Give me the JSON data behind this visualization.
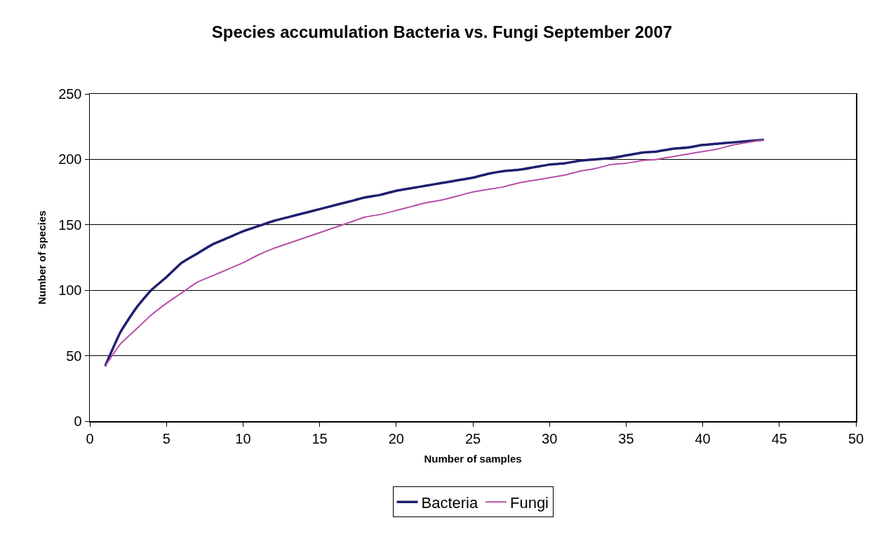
{
  "chart_data": {
    "type": "line",
    "title": "Species accumulation Bacteria vs. Fungi September 2007",
    "xlabel": "Number of samples",
    "ylabel": "Number of species",
    "x": [
      1,
      2,
      3,
      4,
      5,
      6,
      7,
      8,
      9,
      10,
      11,
      12,
      13,
      14,
      15,
      16,
      17,
      18,
      19,
      20,
      21,
      22,
      23,
      24,
      25,
      26,
      27,
      28,
      29,
      30,
      31,
      32,
      33,
      34,
      35,
      36,
      37,
      38,
      39,
      40,
      41,
      42,
      43,
      44
    ],
    "series": [
      {
        "name": "Bacteria",
        "color": "#1f1f6f",
        "values": [
          42,
          68,
          86,
          100,
          110,
          121,
          128,
          135,
          140,
          145,
          149,
          153,
          156,
          159,
          162,
          165,
          168,
          171,
          173,
          176,
          178,
          180,
          182,
          184,
          186,
          189,
          191,
          192,
          194,
          196,
          197,
          199,
          200,
          201,
          203,
          205,
          206,
          208,
          209,
          211,
          212,
          213,
          214,
          215
        ]
      },
      {
        "name": "Fungi",
        "color": "#b84ea8",
        "values": [
          42,
          59,
          70,
          81,
          90,
          98,
          106,
          111,
          116,
          121,
          127,
          132,
          136,
          140,
          144,
          148,
          152,
          156,
          158,
          161,
          164,
          167,
          169,
          172,
          175,
          177,
          179,
          182,
          184,
          186,
          188,
          191,
          193,
          196,
          197,
          199,
          200,
          202,
          204,
          206,
          208,
          211,
          213,
          215
        ]
      }
    ],
    "xlim": [
      0,
      50
    ],
    "xticks": [
      0,
      5,
      10,
      15,
      20,
      25,
      30,
      35,
      40,
      45,
      50
    ],
    "ylim": [
      0,
      250
    ],
    "yticks": [
      0,
      50,
      100,
      150,
      200,
      250
    ],
    "grid": "y",
    "legend": "bottom",
    "marker": "none",
    "line_style": "solid"
  }
}
